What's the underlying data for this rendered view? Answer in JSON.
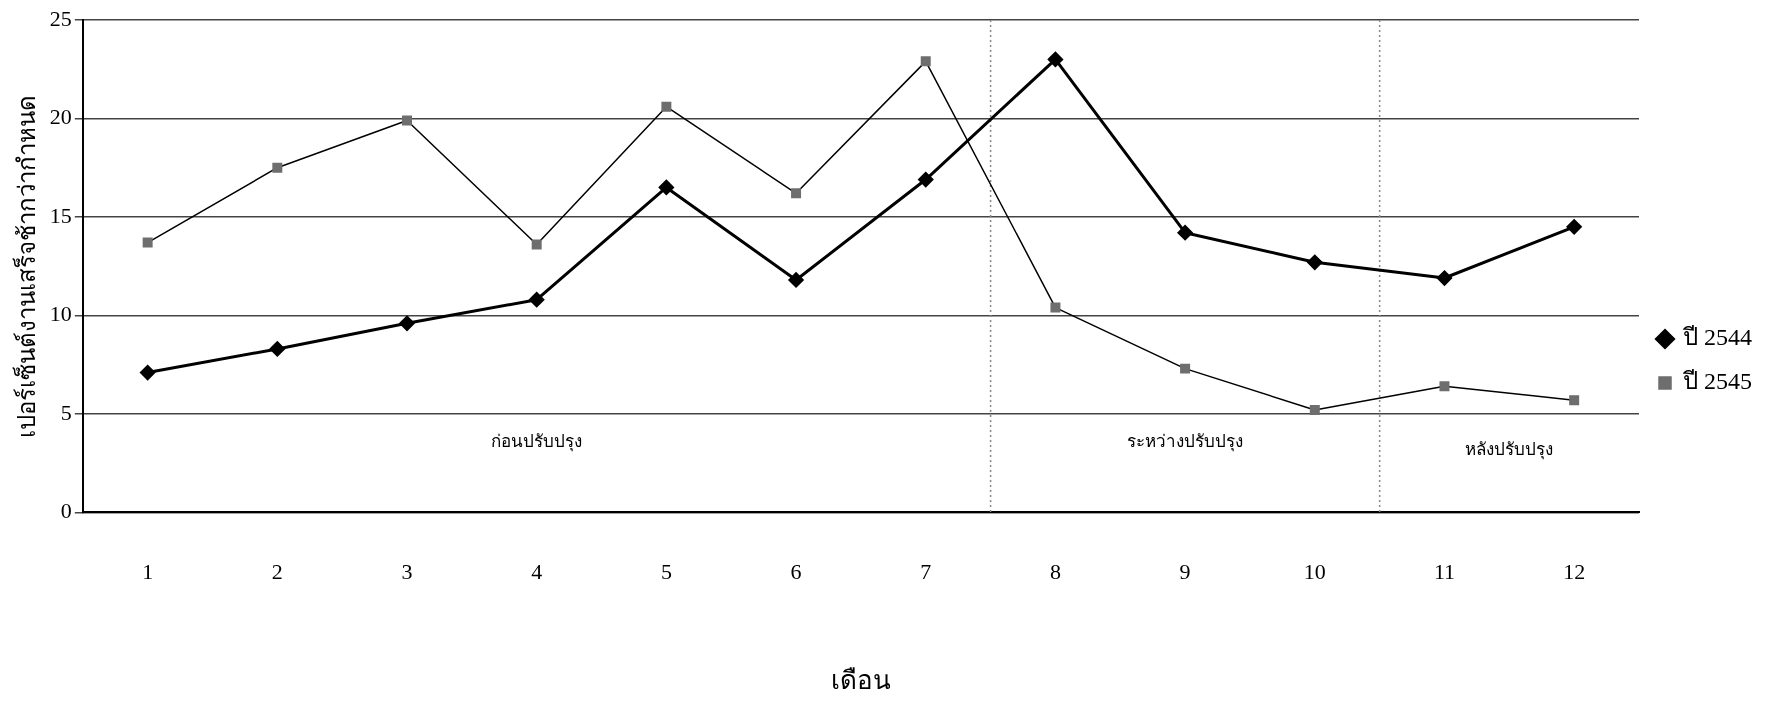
{
  "chart_data": {
    "type": "line",
    "xlabel": "เดือน",
    "ylabel": "เปอร์เซ็นต์งานเสร็จช้ากว่ากำหนด",
    "x": [
      1,
      2,
      3,
      4,
      5,
      6,
      7,
      8,
      9,
      10,
      11,
      12
    ],
    "xlim": [
      0.5,
      12.5
    ],
    "xticks": [
      1,
      2,
      3,
      4,
      5,
      6,
      7,
      8,
      9,
      10,
      11,
      12
    ],
    "ylim": [
      0,
      25
    ],
    "yticks": [
      0,
      5,
      10,
      15,
      20,
      25
    ],
    "series": [
      {
        "name": "ปี 2544",
        "color": "#000000",
        "marker": "diamond",
        "values": [
          7.1,
          8.3,
          9.6,
          10.8,
          16.5,
          11.8,
          16.9,
          23.0,
          14.2,
          12.7,
          11.9,
          14.5
        ]
      },
      {
        "name": "ปี 2545",
        "color": "#6e6e6e",
        "marker": "square",
        "values": [
          13.7,
          17.5,
          19.9,
          13.6,
          20.6,
          16.2,
          22.9,
          10.4,
          7.3,
          5.2,
          6.4,
          5.7
        ]
      }
    ],
    "ref_lines": [
      {
        "axis": "x",
        "value": 7.5,
        "color": "#888888",
        "line_style": "dotted"
      },
      {
        "axis": "x",
        "value": 10.5,
        "color": "#888888",
        "line_style": "dotted"
      }
    ],
    "annotations": [
      "ก่อนปรับปรุง",
      "ระหว่างปรับปรุง",
      "หลังปรับปรุง"
    ],
    "grid": "y",
    "legend": "right"
  }
}
